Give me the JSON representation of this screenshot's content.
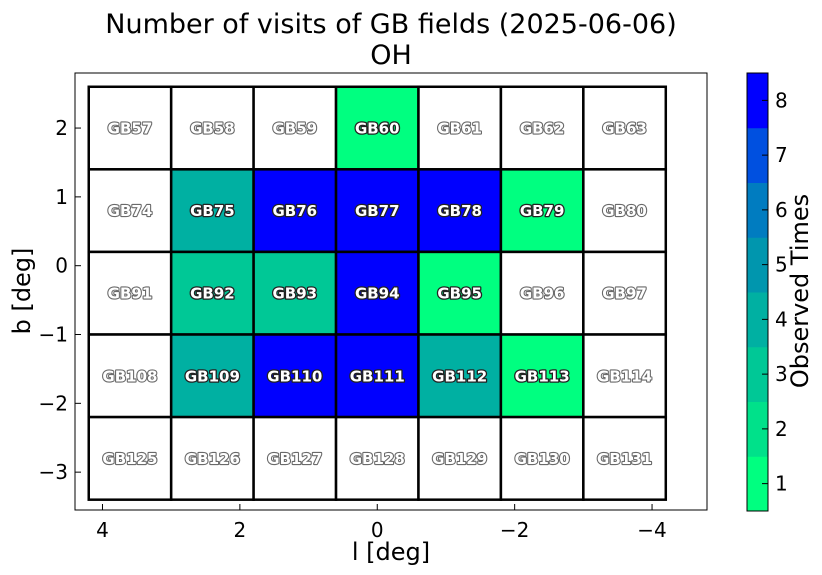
{
  "chart_data": {
    "type": "heatmap",
    "title": "Number of visits of GB fields (2025-06-06)",
    "subtitle": "OH",
    "xlabel": "l [deg]",
    "ylabel": "b [deg]",
    "xlim": [
      4.4,
      -4.8
    ],
    "ylim": [
      -3.55,
      2.8
    ],
    "x_ticks": [
      4,
      2,
      0,
      -2,
      -4
    ],
    "x_tick_labels": [
      "4",
      "2",
      "0",
      "−2",
      "−4"
    ],
    "y_ticks": [
      2,
      1,
      0,
      -1,
      -2,
      -3
    ],
    "y_tick_labels": [
      "2",
      "1",
      "0",
      "−1",
      "−2",
      "−3"
    ],
    "colorbar": {
      "label": "Observed Times",
      "range": [
        0.5,
        8.5
      ],
      "ticks": [
        1,
        2,
        3,
        4,
        5,
        6,
        7,
        8
      ],
      "tick_labels": [
        "1",
        "2",
        "3",
        "4",
        "5",
        "6",
        "7",
        "8"
      ],
      "colors": [
        "#00ff80",
        "#00e18a",
        "#00c896",
        "#00b0a2",
        "#0096ae",
        "#007cc0",
        "#0050e0",
        "#0000ff"
      ]
    },
    "grid": false,
    "columns_l": [
      3.6,
      2.4,
      1.2,
      0.0,
      -1.2,
      -2.4,
      -3.6
    ],
    "rows_b": [
      2.0,
      0.8,
      -0.4,
      -1.6,
      -2.8
    ],
    "cell_half_width": 0.6,
    "cell_half_height": 0.6,
    "fields": [
      [
        "GB57",
        "GB58",
        "GB59",
        "GB60",
        "GB61",
        "GB62",
        "GB63"
      ],
      [
        "GB74",
        "GB75",
        "GB76",
        "GB77",
        "GB78",
        "GB79",
        "GB80"
      ],
      [
        "GB91",
        "GB92",
        "GB93",
        "GB94",
        "GB95",
        "GB96",
        "GB97"
      ],
      [
        "GB108",
        "GB109",
        "GB110",
        "GB111",
        "GB112",
        "GB113",
        "GB114"
      ],
      [
        "GB125",
        "GB126",
        "GB127",
        "GB128",
        "GB129",
        "GB130",
        "GB131"
      ]
    ],
    "visits": [
      [
        0,
        0,
        0,
        1,
        0,
        0,
        0
      ],
      [
        0,
        4,
        8,
        8,
        8,
        1,
        0
      ],
      [
        0,
        3,
        3,
        8,
        1,
        0,
        0
      ],
      [
        0,
        4,
        8,
        8,
        4,
        1,
        0
      ],
      [
        0,
        0,
        0,
        0,
        0,
        0,
        0
      ]
    ]
  }
}
